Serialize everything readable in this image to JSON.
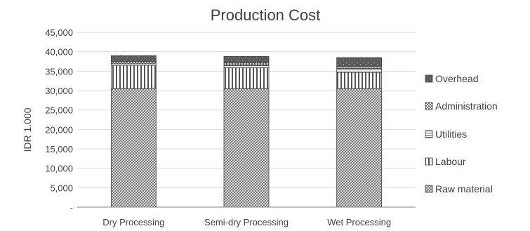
{
  "chart_data": {
    "type": "bar",
    "stacked": true,
    "title": "Production Cost",
    "xlabel": "",
    "ylabel": "IDR 1.000",
    "ylim": [
      0,
      45000
    ],
    "yticks": [
      0,
      5000,
      10000,
      15000,
      20000,
      25000,
      30000,
      35000,
      40000,
      45000
    ],
    "ytick_labels": [
      "-",
      "5,000",
      "10,000",
      "15,000",
      "20,000",
      "25,000",
      "30,000",
      "35,000",
      "40,000",
      "45,000"
    ],
    "categories": [
      "Dry Processing",
      "Semi-dry Processing",
      "Wet Processing"
    ],
    "series": [
      {
        "name": "Raw material",
        "values": [
          30500,
          30500,
          30500
        ]
      },
      {
        "name": "Labour",
        "values": [
          6000,
          5400,
          4200
        ]
      },
      {
        "name": "Utilities",
        "values": [
          400,
          700,
          1000
        ]
      },
      {
        "name": "Administration",
        "values": [
          500,
          500,
          500
        ]
      },
      {
        "name": "Overhead",
        "values": [
          1600,
          1700,
          2300
        ]
      }
    ],
    "legend": [
      "Overhead",
      "Administration",
      "Utilities",
      "Labour",
      "Raw material"
    ],
    "legend_position": "right",
    "grid": true
  }
}
